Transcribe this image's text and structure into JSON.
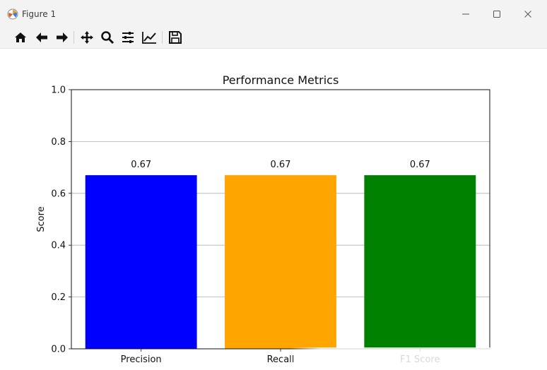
{
  "window": {
    "title": "Figure 1",
    "controls": [
      "minimize-icon",
      "maximize-icon",
      "close-icon"
    ]
  },
  "toolbar": {
    "tools": [
      {
        "name": "home-icon"
      },
      {
        "name": "back-arrow-icon"
      },
      {
        "name": "forward-arrow-icon"
      },
      {
        "name": "pan-icon"
      },
      {
        "name": "zoom-icon"
      },
      {
        "name": "subplots-icon"
      },
      {
        "name": "edit-axis-icon"
      },
      {
        "name": "save-icon"
      }
    ]
  },
  "chart_data": {
    "type": "bar",
    "title": "Performance Metrics",
    "xlabel": "",
    "ylabel": "Score",
    "categories": [
      "Precision",
      "Recall",
      "F1 Score"
    ],
    "values": [
      0.67,
      0.67,
      0.67
    ],
    "data_labels": [
      "0.67",
      "0.67",
      "0.67"
    ],
    "colors": [
      "#0000ff",
      "#ffa500",
      "#008000"
    ],
    "ylim": [
      0,
      1.0
    ],
    "yticks": [
      "0.0",
      "0.2",
      "0.4",
      "0.6",
      "0.8",
      "1.0"
    ],
    "grid": "y-axis horizontal lines",
    "legend": "none"
  }
}
